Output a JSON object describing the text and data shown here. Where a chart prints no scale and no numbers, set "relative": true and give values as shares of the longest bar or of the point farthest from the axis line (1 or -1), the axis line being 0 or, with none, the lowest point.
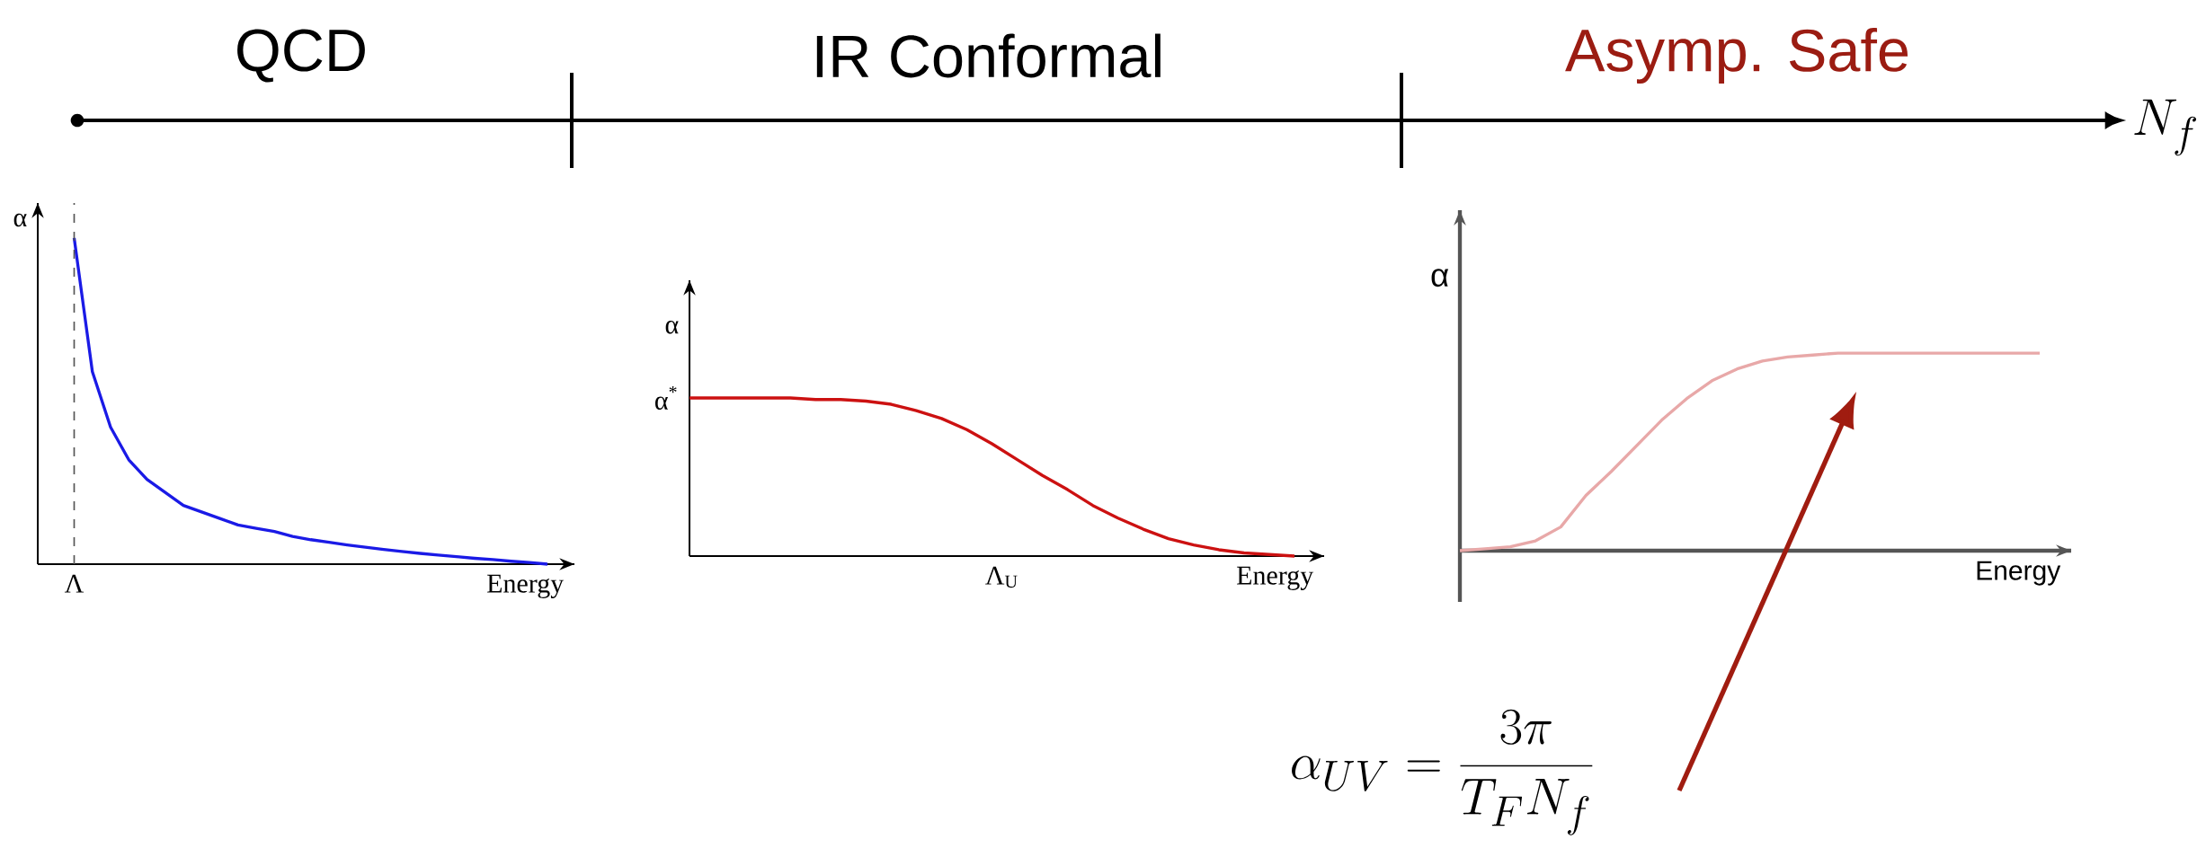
{
  "chart_data": [
    {
      "type": "other",
      "xlabel": "N_f",
      "annotations": [
        "QCD",
        "IR Conformal",
        "Asymp. Safe"
      ]
    },
    {
      "type": "line",
      "relative": true,
      "xlabel": "Energy",
      "ylabel": "α",
      "categories": [
        null,
        null,
        null,
        null,
        null,
        null,
        null,
        null,
        null,
        null,
        null,
        null,
        null,
        null,
        null,
        null,
        null,
        null,
        null,
        null,
        null,
        null,
        null,
        null,
        null,
        null,
        null,
        null,
        null
      ],
      "series": [
        {
          "color": "#1a1ae6",
          "values": [
            null,
            null,
            1.0,
            0.59,
            0.42,
            0.32,
            0.26,
            0.22,
            0.18,
            0.16,
            0.14,
            0.12,
            0.11,
            0.1,
            0.085,
            0.075,
            0.067,
            0.059,
            0.052,
            0.045,
            0.039,
            0.033,
            0.028,
            0.023,
            0.018,
            0.014,
            0.009,
            0.005,
            0
          ]
        }
      ],
      "ref_lines": [
        {
          "axis": "x",
          "value": "Λ",
          "line_style": "dashed",
          "color": "#555555"
        }
      ]
    },
    {
      "type": "line",
      "relative": true,
      "xlabel": "Energy",
      "ylabel": "α",
      "categories": [
        null,
        null,
        null,
        null,
        null,
        null,
        null,
        null,
        null,
        null,
        null,
        null,
        null,
        null,
        null,
        null,
        null,
        null,
        null,
        null,
        null,
        null,
        null,
        null,
        null
      ],
      "series": [
        {
          "color": "#cc1111",
          "values": [
            1,
            1,
            1,
            1,
            1,
            0.99,
            0.99,
            0.98,
            0.96,
            0.92,
            0.87,
            0.8,
            0.71,
            0.61,
            0.51,
            0.42,
            0.32,
            0.24,
            0.17,
            0.11,
            0.07,
            0.04,
            0.02,
            0.01,
            0
          ]
        }
      ],
      "annotations": [
        "α$^{*}$",
        "Λ$_{U}$"
      ]
    },
    {
      "type": "line",
      "relative": true,
      "xlabel": "Energy",
      "ylabel": "α",
      "categories": [
        null,
        null,
        null,
        null,
        null,
        null,
        null,
        null,
        null,
        null,
        null,
        null,
        null,
        null,
        null,
        null,
        null,
        null,
        null,
        null,
        null,
        null,
        null,
        null
      ],
      "series": [
        {
          "color": "#e8a8a8",
          "values": [
            0,
            0.01,
            0.02,
            0.05,
            0.12,
            0.28,
            0.4,
            0.53,
            0.66,
            0.77,
            0.86,
            0.92,
            0.96,
            0.98,
            0.99,
            1,
            1,
            1,
            1,
            1,
            1,
            1,
            1,
            1
          ]
        }
      ],
      "annotations": [
        "\\alpha_{UV} = \\frac{3\\pi}{T_F N_f}"
      ]
    }
  ]
}
